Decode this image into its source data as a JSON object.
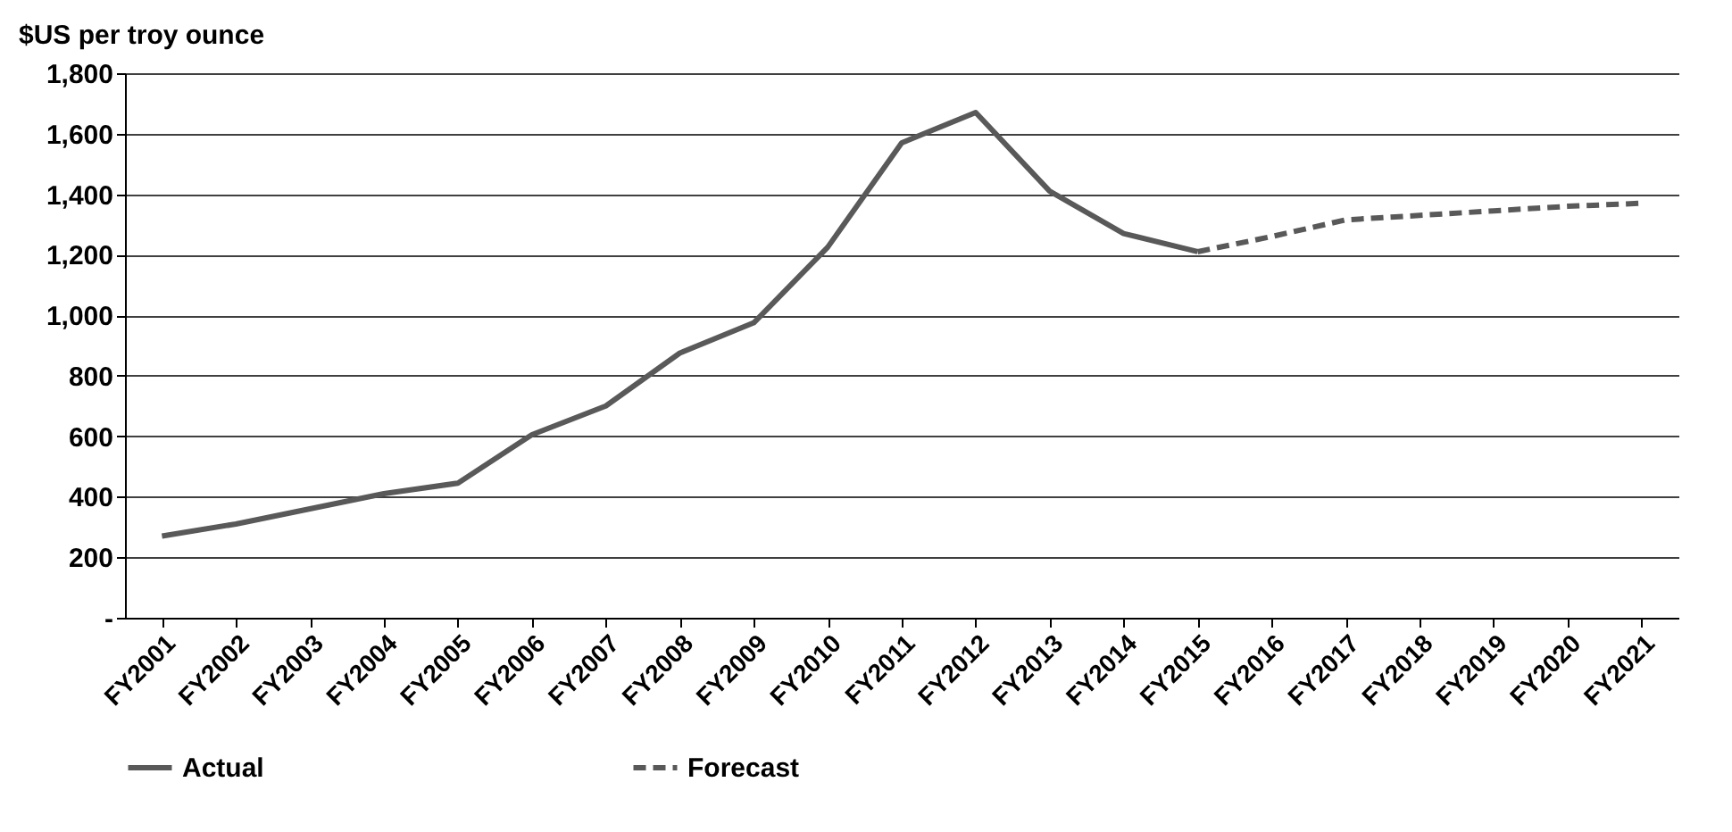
{
  "chart_data": {
    "type": "line",
    "ylabel": "$US per troy ounce",
    "categories": [
      "FY2001",
      "FY2002",
      "FY2003",
      "FY2004",
      "FY2005",
      "FY2006",
      "FY2007",
      "FY2008",
      "FY2009",
      "FY2010",
      "FY2011",
      "FY2012",
      "FY2013",
      "FY2014",
      "FY2015",
      "FY2016",
      "FY2017",
      "FY2018",
      "FY2019",
      "FY2020",
      "FY2021"
    ],
    "series": [
      {
        "name": "Actual",
        "color": "#595959",
        "line_style": "solid",
        "values": [
          270,
          310,
          360,
          410,
          445,
          605,
          700,
          875,
          975,
          1225,
          1570,
          1670,
          1410,
          1270,
          1210,
          null,
          null,
          null,
          null,
          null,
          null
        ]
      },
      {
        "name": "Forecast",
        "color": "#595959",
        "line_style": "dashed",
        "values": [
          null,
          null,
          null,
          null,
          null,
          null,
          null,
          null,
          null,
          null,
          null,
          null,
          null,
          null,
          1210,
          1260,
          1315,
          1330,
          1345,
          1360,
          1370
        ]
      }
    ],
    "ylim": [
      0,
      1800
    ],
    "yticks": [
      {
        "value": 0,
        "label": "-"
      },
      {
        "value": 200,
        "label": "200"
      },
      {
        "value": 400,
        "label": "400"
      },
      {
        "value": 600,
        "label": "600"
      },
      {
        "value": 800,
        "label": "800"
      },
      {
        "value": 1000,
        "label": "1,000"
      },
      {
        "value": 1200,
        "label": "1,200"
      },
      {
        "value": 1400,
        "label": "1,400"
      },
      {
        "value": 1600,
        "label": "1,600"
      },
      {
        "value": 1800,
        "label": "1,800"
      }
    ],
    "grid": "y",
    "legend": "bottom"
  }
}
